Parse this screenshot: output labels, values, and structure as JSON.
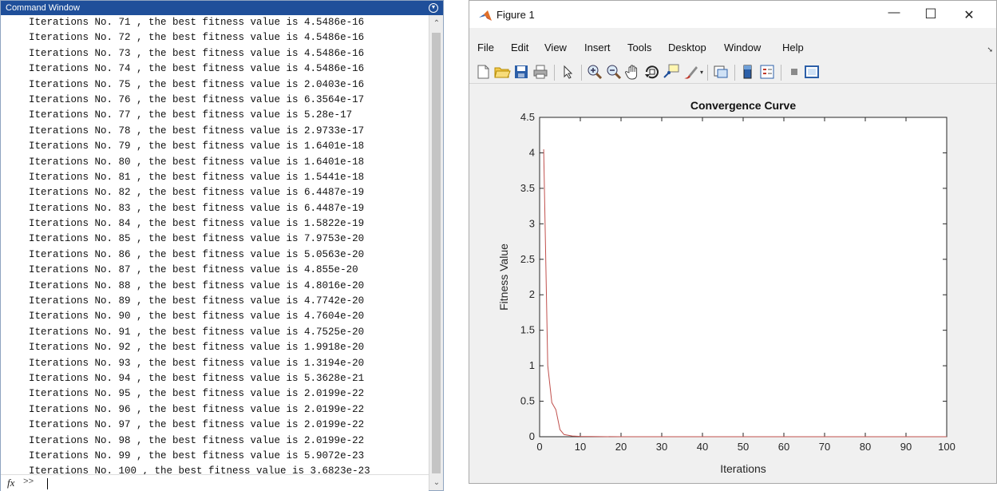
{
  "command_window": {
    "title": "Command Window",
    "lines": [
      "Iterations No. 71 , the best fitness value is 4.5486e-16",
      "Iterations No. 72 , the best fitness value is 4.5486e-16",
      "Iterations No. 73 , the best fitness value is 4.5486e-16",
      "Iterations No. 74 , the best fitness value is 4.5486e-16",
      "Iterations No. 75 , the best fitness value is 2.0403e-16",
      "Iterations No. 76 , the best fitness value is 6.3564e-17",
      "Iterations No. 77 , the best fitness value is 5.28e-17",
      "Iterations No. 78 , the best fitness value is 2.9733e-17",
      "Iterations No. 79 , the best fitness value is 1.6401e-18",
      "Iterations No. 80 , the best fitness value is 1.6401e-18",
      "Iterations No. 81 , the best fitness value is 1.5441e-18",
      "Iterations No. 82 , the best fitness value is 6.4487e-19",
      "Iterations No. 83 , the best fitness value is 6.4487e-19",
      "Iterations No. 84 , the best fitness value is 1.5822e-19",
      "Iterations No. 85 , the best fitness value is 7.9753e-20",
      "Iterations No. 86 , the best fitness value is 5.0563e-20",
      "Iterations No. 87 , the best fitness value is 4.855e-20",
      "Iterations No. 88 , the best fitness value is 4.8016e-20",
      "Iterations No. 89 , the best fitness value is 4.7742e-20",
      "Iterations No. 90 , the best fitness value is 4.7604e-20",
      "Iterations No. 91 , the best fitness value is 4.7525e-20",
      "Iterations No. 92 , the best fitness value is 1.9918e-20",
      "Iterations No. 93 , the best fitness value is 1.3194e-20",
      "Iterations No. 94 , the best fitness value is 5.3628e-21",
      "Iterations No. 95 , the best fitness value is 2.0199e-22",
      "Iterations No. 96 , the best fitness value is 2.0199e-22",
      "Iterations No. 97 , the best fitness value is 2.0199e-22",
      "Iterations No. 98 , the best fitness value is 2.0199e-22",
      "Iterations No. 99 , the best fitness value is 5.9072e-23",
      "Iterations No. 100 , the best fitness value is 3.6823e-23"
    ],
    "prompt_icon": "fx",
    "prompt": ">>"
  },
  "figure_window": {
    "title": "Figure 1",
    "window_buttons": {
      "minimize": "—",
      "maximize": "☐",
      "close": "✕"
    },
    "menu": [
      "File",
      "Edit",
      "View",
      "Insert",
      "Tools",
      "Desktop",
      "Window",
      "Help"
    ],
    "toolbar_icons": [
      "new-figure-icon",
      "open-file-icon",
      "save-icon",
      "print-icon",
      "select-arrow-icon",
      "zoom-in-icon",
      "zoom-out-icon",
      "pan-hand-icon",
      "rotate-3d-icon",
      "data-cursor-icon",
      "brush-icon",
      "link-plot-icon",
      "colorbar-icon",
      "legend-icon",
      "hide-plot-tools-icon",
      "show-plot-tools-icon"
    ]
  },
  "colors": {
    "line": "#c0504d",
    "titlebar": "#1f4f9a"
  },
  "chart_data": {
    "type": "line",
    "title": "Convergence Curve",
    "xlabel": "Iterations",
    "ylabel": "Fitness Value",
    "xlim": [
      0,
      100
    ],
    "ylim": [
      0,
      4.5
    ],
    "xticks": [
      0,
      10,
      20,
      30,
      40,
      50,
      60,
      70,
      80,
      90,
      100
    ],
    "yticks": [
      0,
      0.5,
      1,
      1.5,
      2,
      2.5,
      3,
      3.5,
      4,
      4.5
    ],
    "grid": false,
    "series": [
      {
        "x": [
          1,
          2,
          3,
          4,
          5,
          6,
          8,
          10,
          15,
          20,
          30,
          40,
          50,
          60,
          70,
          80,
          90,
          100
        ],
        "y": [
          4.05,
          1.0,
          0.48,
          0.38,
          0.1,
          0.03,
          0.01,
          0.005,
          0.001,
          0.0,
          0.0,
          0.0,
          0.0,
          0.0,
          0.0,
          0.0,
          0.0,
          0.0
        ]
      }
    ]
  }
}
